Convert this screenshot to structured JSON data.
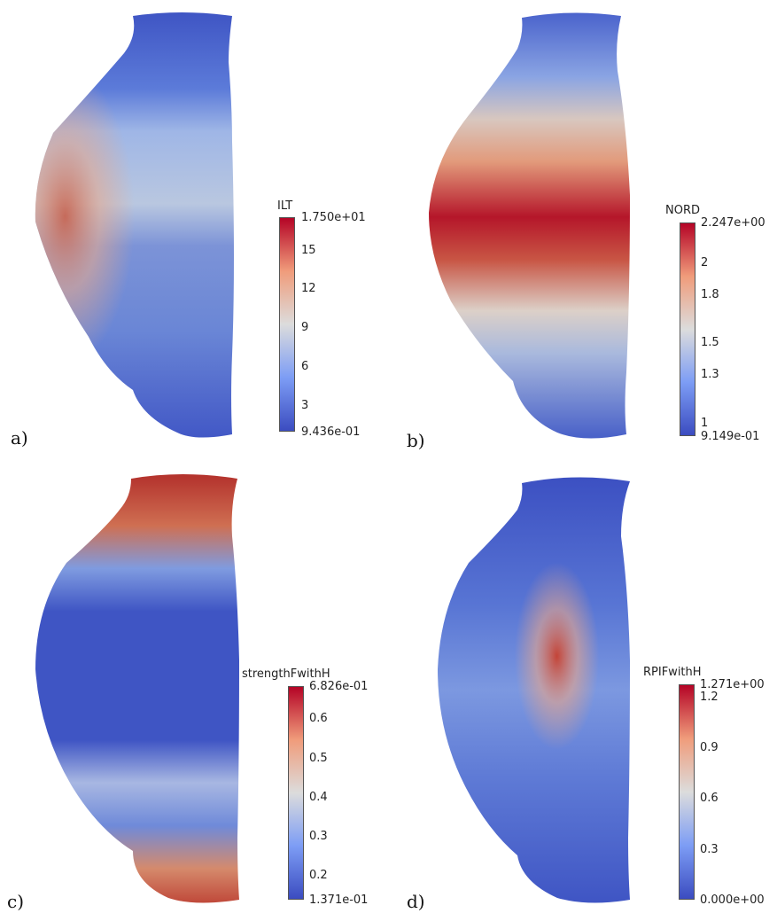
{
  "panels": {
    "a": {
      "label": "a)",
      "field": "ILT",
      "max": "1.750e+01",
      "min": "9.436e-01",
      "ticks": [
        "15",
        "12",
        "9",
        "6",
        "3"
      ],
      "tick_values": [
        15,
        12,
        9,
        6,
        3
      ],
      "range": [
        0.9436,
        17.5
      ]
    },
    "b": {
      "label": "b)",
      "field": "NORD",
      "max": "2.247e+00",
      "min": "9.149e-01",
      "ticks": [
        "2",
        "1.8",
        "1.5",
        "1.3",
        "1"
      ],
      "tick_values": [
        2,
        1.8,
        1.5,
        1.3,
        1
      ],
      "range": [
        0.9149,
        2.247
      ]
    },
    "c": {
      "label": "c)",
      "field": "strengthFwithH",
      "max": "6.826e-01",
      "min": "1.371e-01",
      "ticks": [
        "0.6",
        "0.5",
        "0.4",
        "0.3",
        "0.2"
      ],
      "tick_values": [
        0.6,
        0.5,
        0.4,
        0.3,
        0.2
      ],
      "range": [
        0.1371,
        0.6826
      ]
    },
    "d": {
      "label": "d)",
      "field": "RPIFwithH",
      "max": "1.271e+00",
      "min": "0.000e+00",
      "ticks": [
        "1.2",
        "0.9",
        "0.6",
        "0.3"
      ],
      "tick_values": [
        1.2,
        0.9,
        0.6,
        0.3
      ],
      "range": [
        0,
        1.271
      ]
    }
  },
  "colors": {
    "low": "#3b4cc0",
    "mid": "#dddddd",
    "high": "#b40426"
  }
}
